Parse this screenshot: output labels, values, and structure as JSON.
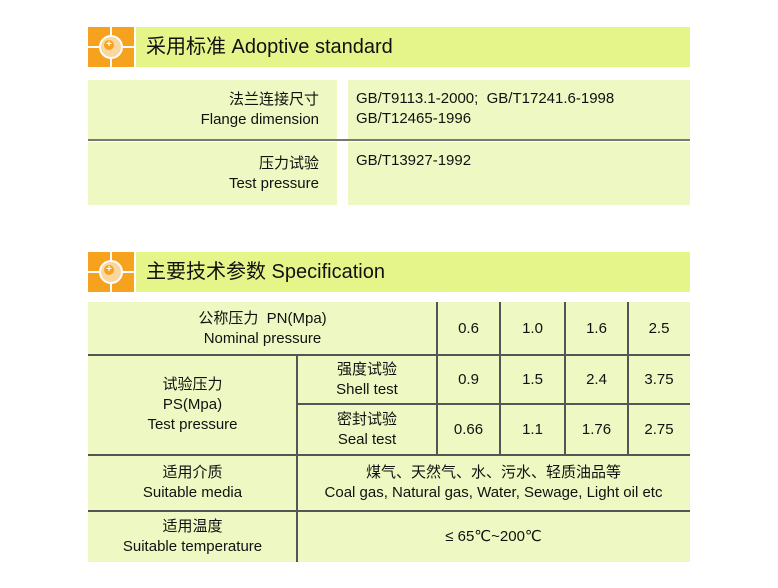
{
  "section1": {
    "icon": "orange-crosshair-badge-icon",
    "title": "采用标准  Adoptive standard",
    "rows": [
      {
        "label_cn": "法兰连接尺寸",
        "label_en": "Flange dimension",
        "values": [
          "GB/T9113.1-2000;  GB/T17241.6-1998",
          "GB/T12465-1996"
        ]
      },
      {
        "label_cn": "压力试验",
        "label_en": "Test pressure",
        "values": [
          "GB/T13927-1992"
        ]
      }
    ]
  },
  "section2": {
    "icon": "orange-crosshair-badge-icon",
    "title": "主要技术参数  Specification",
    "nominal": {
      "label_cn": "公称压力  PN(Mpa)",
      "label_en": "Nominal pressure",
      "values": [
        "0.6",
        "1.0",
        "1.6",
        "2.5"
      ]
    },
    "test_pressure": {
      "label_cn": "试验压力",
      "label_unit": "PS(Mpa)",
      "label_en": "Test pressure",
      "shell": {
        "label_cn": "强度试验",
        "label_en": "Shell test",
        "values": [
          "0.9",
          "1.5",
          "2.4",
          "3.75"
        ]
      },
      "seal": {
        "label_cn": "密封试验",
        "label_en": "Seal test",
        "values": [
          "0.66",
          "1.1",
          "1.76",
          "2.75"
        ]
      }
    },
    "media": {
      "label_cn": "适用介质",
      "label_en": "Suitable media",
      "value_cn": "煤气、天然气、水、污水、轻质油品等",
      "value_en": "Coal gas, Natural gas, Water, Sewage, Light oil etc"
    },
    "temperature": {
      "label_cn": "适用温度",
      "label_en": "Suitable temperature",
      "value": "≤ 65℃~200℃"
    }
  },
  "colors": {
    "accent": "#f6a21e",
    "header_band": "#e6f58a",
    "cell": "#eef8c2"
  }
}
